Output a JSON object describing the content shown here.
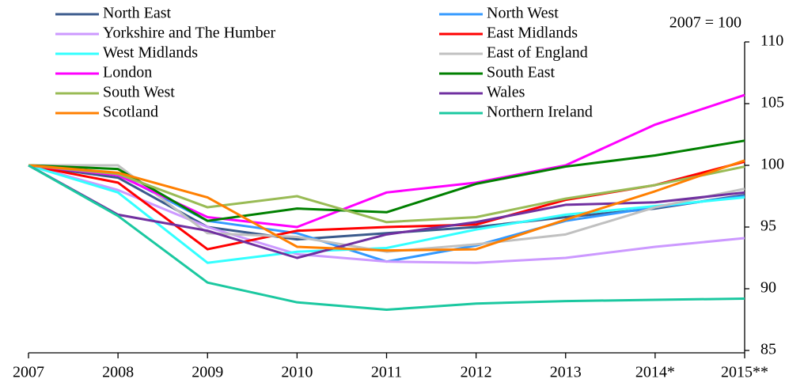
{
  "chart_data": {
    "type": "line",
    "annotation": "2007 = 100",
    "categories": [
      "2007",
      "2008",
      "2009",
      "2010",
      "2011",
      "2012",
      "2013",
      "2014*",
      "2015**"
    ],
    "ylim": [
      85,
      110
    ],
    "yticks": [
      85,
      90,
      95,
      100,
      105,
      110
    ],
    "y_axis_side": "right",
    "series": [
      {
        "name": "North East",
        "color": "#3a5a8c",
        "values": [
          100,
          99.0,
          95.0,
          94.0,
          94.5,
          95.0,
          95.8,
          96.5,
          97.6
        ]
      },
      {
        "name": "North West",
        "color": "#3399ff",
        "values": [
          100,
          99.3,
          95.5,
          94.5,
          92.2,
          93.5,
          95.5,
          96.6,
          97.5
        ]
      },
      {
        "name": "Yorkshire and The Humber",
        "color": "#cc99ff",
        "values": [
          100,
          98.0,
          95.0,
          92.8,
          92.2,
          92.1,
          92.5,
          93.4,
          94.1
        ]
      },
      {
        "name": "East Midlands",
        "color": "#ff0000",
        "values": [
          100,
          98.6,
          93.2,
          94.7,
          95.0,
          95.2,
          97.2,
          98.4,
          100.3
        ]
      },
      {
        "name": "West Midlands",
        "color": "#33ffff",
        "values": [
          100,
          97.8,
          92.1,
          93.0,
          93.3,
          94.8,
          96.0,
          96.7,
          97.4
        ]
      },
      {
        "name": "East of England",
        "color": "#c0c0c0",
        "values": [
          100,
          100,
          94.5,
          94.2,
          93.0,
          93.6,
          94.4,
          96.6,
          98.1
        ]
      },
      {
        "name": "London",
        "color": "#ff00ff",
        "values": [
          100,
          99.2,
          95.8,
          95.0,
          97.8,
          98.6,
          100.0,
          103.3,
          105.7
        ]
      },
      {
        "name": "South East",
        "color": "#008000",
        "values": [
          100,
          99.7,
          95.5,
          96.5,
          96.2,
          98.5,
          99.9,
          100.8,
          102.0
        ]
      },
      {
        "name": "South West",
        "color": "#99bb55",
        "values": [
          100,
          99.3,
          96.6,
          97.5,
          95.4,
          95.8,
          97.3,
          98.4,
          99.9
        ]
      },
      {
        "name": "Wales",
        "color": "#7030a0",
        "values": [
          100,
          96.0,
          94.7,
          92.5,
          94.4,
          95.4,
          96.8,
          97.0,
          97.8
        ]
      },
      {
        "name": "Scotland",
        "color": "#ff7f00",
        "values": [
          100,
          99.4,
          97.4,
          93.4,
          93.1,
          93.2,
          95.6,
          97.9,
          100.4
        ]
      },
      {
        "name": "Northern Ireland",
        "color": "#1bc8a0",
        "values": [
          100,
          95.9,
          90.5,
          88.9,
          88.3,
          88.8,
          89.0,
          89.1,
          89.2
        ]
      }
    ]
  }
}
